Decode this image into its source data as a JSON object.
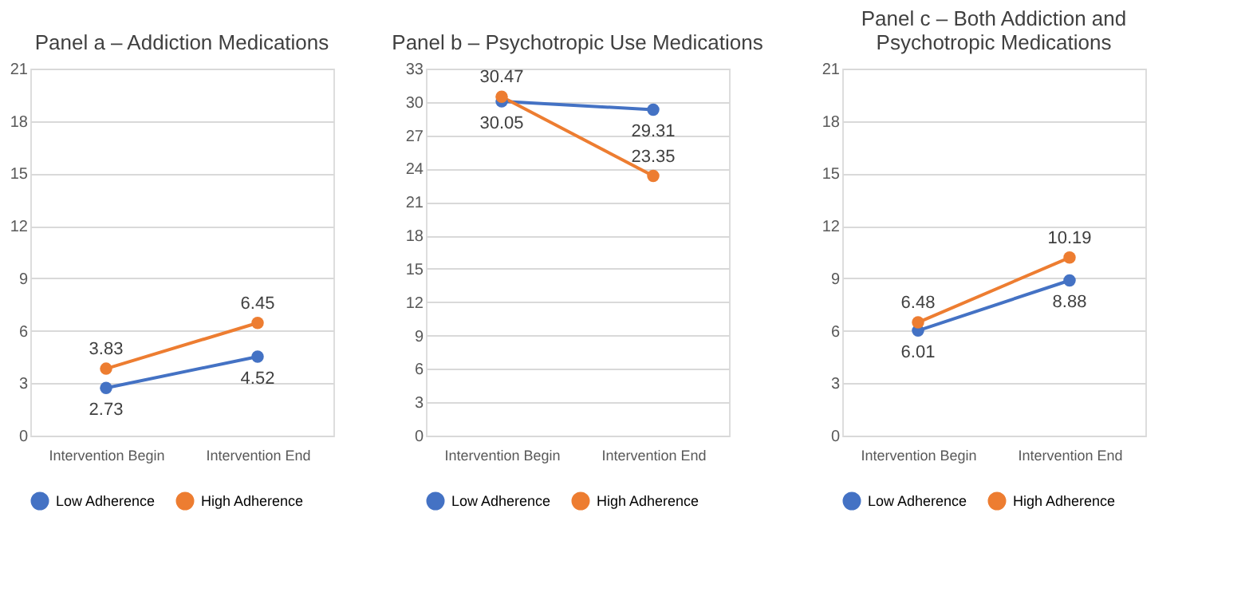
{
  "chart_data": [
    {
      "type": "line",
      "title": "Panel a – Addiction Medications",
      "categories": [
        "Intervention Begin",
        "Intervention End"
      ],
      "ylim": [
        0,
        21
      ],
      "yticks": [
        0,
        3,
        6,
        9,
        12,
        15,
        18,
        21
      ],
      "grid": "y",
      "legend": "bottom",
      "marker": "circle",
      "data_labels": true,
      "series": [
        {
          "name": "Low Adherence",
          "color": "#4472c4",
          "values": [
            2.73,
            4.52
          ]
        },
        {
          "name": "High Adherence",
          "color": "#ed7d31",
          "values": [
            3.83,
            6.45
          ]
        }
      ]
    },
    {
      "type": "line",
      "title": "Panel b – Psychotropic Use Medications",
      "categories": [
        "Intervention Begin",
        "Intervention End"
      ],
      "ylim": [
        0,
        33
      ],
      "yticks": [
        0,
        3,
        6,
        9,
        12,
        15,
        18,
        21,
        24,
        27,
        30,
        33
      ],
      "grid": "y",
      "legend": "bottom",
      "marker": "circle",
      "data_labels": true,
      "series": [
        {
          "name": "Low Adherence",
          "color": "#4472c4",
          "values": [
            30.05,
            29.31
          ]
        },
        {
          "name": "High Adherence",
          "color": "#ed7d31",
          "values": [
            30.47,
            23.35
          ]
        }
      ]
    },
    {
      "type": "line",
      "title": "Panel c – Both Addiction and Psychotropic Medications",
      "categories": [
        "Intervention Begin",
        "Intervention End"
      ],
      "ylim": [
        0,
        21
      ],
      "yticks": [
        0,
        3,
        6,
        9,
        12,
        15,
        18,
        21
      ],
      "grid": "y",
      "legend": "bottom",
      "marker": "circle",
      "data_labels": true,
      "series": [
        {
          "name": "Low Adherence",
          "color": "#4472c4",
          "values": [
            6.01,
            8.88
          ]
        },
        {
          "name": "High Adherence",
          "color": "#ed7d31",
          "values": [
            6.48,
            10.19
          ]
        }
      ]
    }
  ]
}
